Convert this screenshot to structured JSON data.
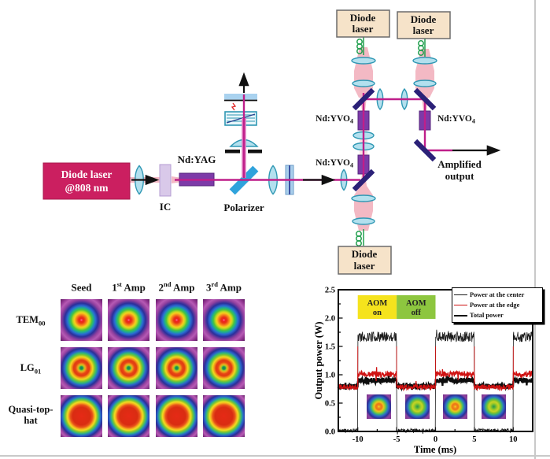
{
  "colors": {
    "seed_laser_box": "#cb1f60",
    "pump_laser_box": "#f6e3c9",
    "beam_magenta": "#bf1f8a",
    "pump_pink": "#f3b9c4",
    "crystal_purple": "#7d3aa8",
    "mirror_navy": "#2b2178",
    "polarizer_blue": "#2fa3dc",
    "lens_cyan": "#b3e0ee",
    "fiber_green": "#1f9e4c",
    "aom_on_yellow": "#f5e31d",
    "aom_off_green": "#8dc63f"
  },
  "diagram": {
    "seed_laser": {
      "line1": "Diode laser",
      "line2": "@808 nm"
    },
    "ic_label": "IC",
    "ndyag_label": "Nd:YAG",
    "polarizer_label": "Polarizer",
    "ndyvo4": {
      "pre": "Nd:YVO",
      "sub": "4"
    },
    "pump_laser": {
      "line1": "Diode",
      "line2": "laser"
    },
    "amplified_output": {
      "line1": "Amplified",
      "line2": "output"
    }
  },
  "beam_grid": {
    "col_headers": [
      {
        "pre": "Seed",
        "sup": "",
        "post": ""
      },
      {
        "pre": "1",
        "sup": "st",
        "post": " Amp"
      },
      {
        "pre": "2",
        "sup": "nd",
        "post": " Amp"
      },
      {
        "pre": "3",
        "sup": "rd",
        "post": " Amp"
      }
    ],
    "rows": [
      {
        "pre": "TEM",
        "sub": "00",
        "profile": "gaussian"
      },
      {
        "pre": "LG",
        "sub": "01",
        "profile": "donut"
      },
      {
        "pre": "Quasi-top-hat",
        "sub": "",
        "profile": "tophat"
      }
    ]
  },
  "chart_data": {
    "type": "line",
    "xlabel": "Time (ms)",
    "ylabel": "Output power (W)",
    "xlim": [
      -12.5,
      12.5
    ],
    "ylim": [
      0.0,
      2.5
    ],
    "xticks": [
      "-10",
      "-5",
      "0",
      "5",
      "10"
    ],
    "yticks": [
      "0.0",
      "0.5",
      "1.0",
      "1.5",
      "2.0",
      "2.5"
    ],
    "modulation_period_ms": 10,
    "aom_on_intervals": [
      [
        -10,
        -5
      ],
      [
        0,
        5
      ],
      [
        10,
        12.5
      ]
    ],
    "annotations": [
      {
        "line1": "AOM",
        "line2": "on",
        "x_range": [
          -10,
          -5
        ],
        "color": "#f5e31d"
      },
      {
        "line1": "AOM",
        "line2": "off",
        "x_range": [
          -5,
          0
        ],
        "color": "#8dc63f"
      }
    ],
    "series": [
      {
        "name": "Power at the center",
        "color": "#1a1a1a",
        "line_width": 0.8,
        "level_on": 1.67,
        "level_off": 0.02,
        "noise_on": 0.09,
        "noise_off": 0.03
      },
      {
        "name": "Power at the edge",
        "color": "#cf1212",
        "line_width": 1.3,
        "level_on": 1.01,
        "level_off": 0.78,
        "noise_on": 0.055,
        "noise_off": 0.045
      },
      {
        "name": "Total power",
        "color": "#0d0d0d",
        "line_width": 2.4,
        "level_on": 0.9,
        "level_off": 0.8,
        "noise_on": 0.045,
        "noise_off": 0.04
      }
    ],
    "insets": [
      {
        "x_center": -7.3,
        "state": "on"
      },
      {
        "x_center": -2.3,
        "state": "off"
      },
      {
        "x_center": 2.5,
        "state": "on"
      },
      {
        "x_center": 7.5,
        "state": "off"
      }
    ]
  }
}
